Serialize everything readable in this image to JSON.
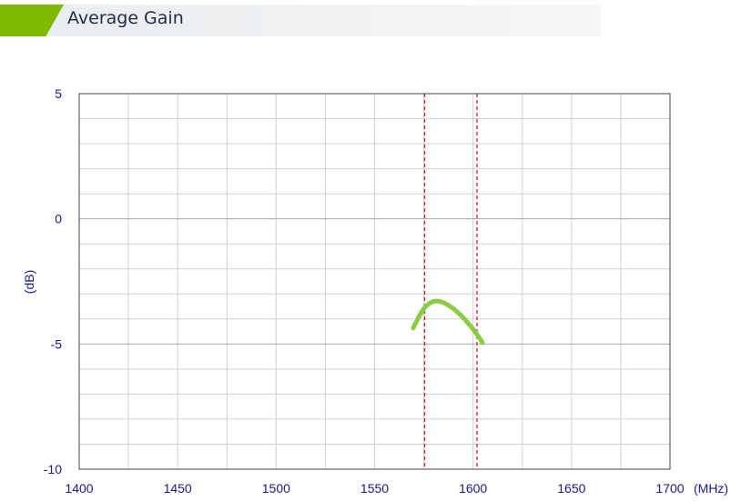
{
  "header": {
    "title": "Average Gain"
  },
  "chart_data": {
    "type": "line",
    "title": "Average Gain",
    "xlabel": "(MHz)",
    "ylabel": "(dB)",
    "xlim": [
      1400,
      1700
    ],
    "ylim": [
      -10,
      5
    ],
    "x_ticks": [
      1400,
      1450,
      1500,
      1550,
      1600,
      1650,
      1700
    ],
    "y_ticks": [
      5,
      0,
      -5,
      -10
    ],
    "grid": true,
    "series": [
      {
        "x": [
          1569.6,
          1575.2,
          1581.7,
          1591,
          1600.2,
          1604.8
        ],
        "y": [
          -4.36,
          -3.49,
          -3.2,
          -3.6,
          -4.4,
          -4.95
        ],
        "color": "#8ccc44"
      }
    ],
    "reference_lines": [
      {
        "x": 1575.42,
        "color": "#e02020",
        "style": "dashed"
      },
      {
        "x": 1602,
        "color": "#e02020",
        "style": "dashed"
      }
    ]
  },
  "colors": {
    "accent": "#7fba00",
    "axis_text": "#1a1a8c"
  }
}
